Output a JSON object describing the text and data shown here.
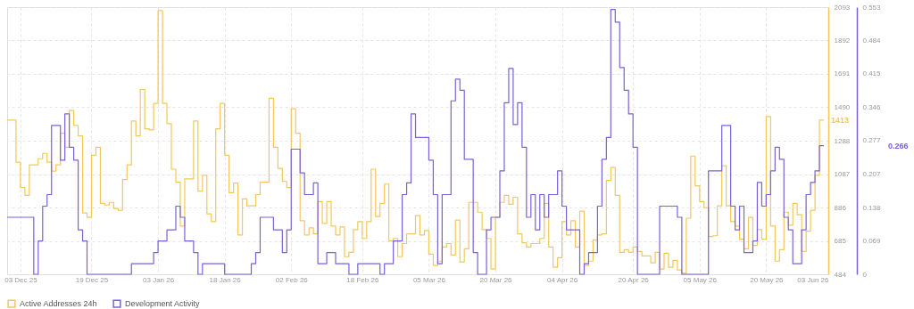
{
  "chart_data": {
    "type": "step",
    "xlim": [
      "2025-11-30",
      "2026-06-03"
    ],
    "xticks": [
      {
        "value": "2025-12-03",
        "label": "03 Dec 25"
      },
      {
        "value": "2025-12-19",
        "label": "19 Dec 25"
      },
      {
        "value": "2026-01-03",
        "label": "03 Jan 26"
      },
      {
        "value": "2026-01-18",
        "label": "18 Jan 26"
      },
      {
        "value": "2026-02-02",
        "label": "02 Feb 26"
      },
      {
        "value": "2026-02-18",
        "label": "18 Feb 26"
      },
      {
        "value": "2026-03-05",
        "label": "05 Mar 26"
      },
      {
        "value": "2026-03-20",
        "label": "20 Mar 26"
      },
      {
        "value": "2026-04-04",
        "label": "04 Apr 26"
      },
      {
        "value": "2026-04-20",
        "label": "20 Apr 26"
      },
      {
        "value": "2026-05-05",
        "label": "05 May 26"
      },
      {
        "value": "2026-05-20",
        "label": "20 May 26"
      },
      {
        "value": "2026-06-03",
        "label": "03 Jun 26"
      }
    ],
    "ylim": [
      484,
      2093
    ],
    "yticks": [
      484,
      685,
      886,
      1087,
      1288,
      1490,
      1691,
      1892,
      2093
    ],
    "y2lim": [
      0,
      0.553
    ],
    "y2ticks": [
      0,
      0.069,
      0.138,
      0.207,
      0.277,
      0.346,
      0.415,
      0.484,
      0.553
    ],
    "grid": true,
    "legend": "bottom",
    "annotations": [
      "1413",
      "0.266"
    ],
    "series": [
      {
        "name": "Active Addresses 24h",
        "color": "#f2c75c",
        "x": [
          "2025-11-30",
          "2025-12-02",
          "2025-12-03",
          "2025-12-04",
          "2025-12-05",
          "2025-12-07",
          "2025-12-08",
          "2025-12-09",
          "2025-12-10",
          "2025-12-11",
          "2025-12-12",
          "2025-12-13",
          "2025-12-14",
          "2025-12-15",
          "2025-12-16",
          "2025-12-17",
          "2025-12-18",
          "2025-12-19",
          "2025-12-20",
          "2025-12-21",
          "2025-12-22",
          "2025-12-23",
          "2025-12-24",
          "2025-12-25",
          "2025-12-26",
          "2025-12-27",
          "2025-12-28",
          "2025-12-29",
          "2025-12-30",
          "2025-12-31",
          "2026-01-01",
          "2026-01-02",
          "2026-01-03",
          "2026-01-04",
          "2026-01-05",
          "2026-01-06",
          "2026-01-07",
          "2026-01-08",
          "2026-01-09",
          "2026-01-11",
          "2026-01-12",
          "2026-01-13",
          "2026-01-14",
          "2026-01-15",
          "2026-01-16",
          "2026-01-17",
          "2026-01-18",
          "2026-01-19",
          "2026-01-20",
          "2026-01-21",
          "2026-01-22",
          "2026-01-23",
          "2026-01-25",
          "2026-01-26",
          "2026-01-28",
          "2026-01-29",
          "2026-01-30",
          "2026-01-31",
          "2026-02-01",
          "2026-02-02",
          "2026-02-03",
          "2026-02-04",
          "2026-02-05",
          "2026-02-06",
          "2026-02-07",
          "2026-02-08",
          "2026-02-09",
          "2026-02-10",
          "2026-02-11",
          "2026-02-12",
          "2026-02-13",
          "2026-02-14",
          "2026-02-15",
          "2026-02-16",
          "2026-02-17",
          "2026-02-18",
          "2026-02-19",
          "2026-02-20",
          "2026-02-21",
          "2026-02-22",
          "2026-02-23",
          "2026-02-24",
          "2026-02-25",
          "2026-02-26",
          "2026-02-27",
          "2026-02-28",
          "2026-03-02",
          "2026-03-03",
          "2026-03-04",
          "2026-03-05",
          "2026-03-06",
          "2026-03-07",
          "2026-03-08",
          "2026-03-09",
          "2026-03-10",
          "2026-03-11",
          "2026-03-12",
          "2026-03-13",
          "2026-03-14",
          "2026-03-16",
          "2026-03-17",
          "2026-03-18",
          "2026-03-19",
          "2026-03-20",
          "2026-03-21",
          "2026-03-22",
          "2026-03-23",
          "2026-03-24",
          "2026-03-25",
          "2026-03-26",
          "2026-03-27",
          "2026-03-28",
          "2026-03-30",
          "2026-03-31",
          "2026-04-01",
          "2026-04-02",
          "2026-04-03",
          "2026-04-04",
          "2026-04-05",
          "2026-04-06",
          "2026-04-07",
          "2026-04-08",
          "2026-04-09",
          "2026-04-10",
          "2026-04-11",
          "2026-04-12",
          "2026-04-13",
          "2026-04-14",
          "2026-04-15",
          "2026-04-16",
          "2026-04-17",
          "2026-04-18",
          "2026-04-19",
          "2026-04-20",
          "2026-04-21",
          "2026-04-22",
          "2026-04-24",
          "2026-04-25",
          "2026-04-26",
          "2026-04-27",
          "2026-04-28",
          "2026-04-29",
          "2026-04-30",
          "2026-05-01",
          "2026-05-02",
          "2026-05-03",
          "2026-05-04",
          "2026-05-05",
          "2026-05-06",
          "2026-05-07",
          "2026-05-08",
          "2026-05-09",
          "2026-05-10",
          "2026-05-11",
          "2026-05-12",
          "2026-05-13",
          "2026-05-14",
          "2026-05-15",
          "2026-05-16",
          "2026-05-17",
          "2026-05-18",
          "2026-05-19",
          "2026-05-20",
          "2026-05-21",
          "2026-05-22",
          "2026-05-23",
          "2026-05-24",
          "2026-05-25",
          "2026-05-26",
          "2026-05-27",
          "2026-05-28",
          "2026-05-29",
          "2026-05-30",
          "2026-05-31",
          "2026-06-01",
          "2026-06-02"
        ],
        "values": [
          1412,
          1159,
          1006,
          959,
          1143,
          1180,
          1212,
          1159,
          1106,
          1143,
          1333,
          1249,
          1470,
          1381,
          1317,
          853,
          827,
          1201,
          1249,
          911,
          901,
          917,
          880,
          869,
          1054,
          1143,
          1407,
          1317,
          1597,
          1360,
          1354,
          1513,
          2072,
          1513,
          1391,
          1117,
          1038,
          774,
          1059,
          1407,
          985,
          1080,
          848,
          801,
          1360,
          1513,
          1201,
          975,
          1033,
          721,
          938,
          896,
          964,
          1038,
          1544,
          1249,
          1122,
          1043,
          1006,
          1481,
          1333,
          806,
          721,
          764,
          727,
          922,
          790,
          922,
          774,
          721,
          769,
          590,
          616,
          753,
          801,
          700,
          801,
          1117,
          832,
          911,
          1027,
          684,
          700,
          590,
          669,
          727,
          837,
          721,
          748,
          605,
          537,
          563,
          648,
          669,
          600,
          811,
          558,
          637,
          917,
          858,
          753,
          700,
          516,
          827,
          917,
          959,
          906,
          948,
          727,
          674,
          648,
          669,
          700,
          911,
          648,
          526,
          584,
          801,
          721,
          806,
          648,
          864,
          537,
          563,
          690,
          721,
          727,
          1049,
          1127,
          959,
          616,
          632,
          616,
          648,
          621,
          595,
          553,
          616,
          516,
          611,
          526,
          568,
          510,
          490,
          822,
          1196,
          1017,
          922,
          885,
          711,
          716,
          896,
          1138,
          896,
          801,
          774,
          695,
          637,
          827,
          658,
          753,
          695,
          1434,
          774,
          563,
          632,
          858,
          780,
          911,
          843,
          621,
          743,
          869,
          1080,
          1413,
          1413
        ]
      },
      {
        "name": "Development Activity",
        "color": "#7b61d9",
        "axis": "y2",
        "x": [
          "2025-11-30",
          "2025-12-06",
          "2025-12-07",
          "2025-12-08",
          "2025-12-09",
          "2025-12-10",
          "2025-12-12",
          "2025-12-13",
          "2025-12-14",
          "2025-12-15",
          "2025-12-16",
          "2025-12-17",
          "2025-12-18",
          "2025-12-28",
          "2026-01-02",
          "2026-01-03",
          "2026-01-05",
          "2026-01-07",
          "2026-01-08",
          "2026-01-09",
          "2026-01-11",
          "2026-01-12",
          "2026-01-13",
          "2026-01-18",
          "2026-01-24",
          "2026-01-25",
          "2026-01-26",
          "2026-01-29",
          "2026-01-31",
          "2026-02-01",
          "2026-02-02",
          "2026-02-04",
          "2026-02-05",
          "2026-02-07",
          "2026-02-08",
          "2026-02-10",
          "2026-02-12",
          "2026-02-15",
          "2026-02-17",
          "2026-02-22",
          "2026-02-23",
          "2026-02-25",
          "2026-02-27",
          "2026-02-28",
          "2026-03-01",
          "2026-03-02",
          "2026-03-05",
          "2026-03-06",
          "2026-03-07",
          "2026-03-08",
          "2026-03-10",
          "2026-03-11",
          "2026-03-12",
          "2026-03-13",
          "2026-03-15",
          "2026-03-16",
          "2026-03-18",
          "2026-03-19",
          "2026-03-21",
          "2026-03-22",
          "2026-03-23",
          "2026-03-24",
          "2026-03-25",
          "2026-03-26",
          "2026-03-27",
          "2026-03-28",
          "2026-03-29",
          "2026-03-30",
          "2026-03-31",
          "2026-04-01",
          "2026-04-03",
          "2026-04-04",
          "2026-04-05",
          "2026-04-08",
          "2026-04-09",
          "2026-04-10",
          "2026-04-12",
          "2026-04-13",
          "2026-04-14",
          "2026-04-15",
          "2026-04-16",
          "2026-04-17",
          "2026-04-18",
          "2026-04-19",
          "2026-04-20",
          "2026-04-21",
          "2026-04-26",
          "2026-04-30",
          "2026-05-01",
          "2026-05-07",
          "2026-05-10",
          "2026-05-12",
          "2026-05-13",
          "2026-05-14",
          "2026-05-15",
          "2026-05-17",
          "2026-05-18",
          "2026-05-19",
          "2026-05-20",
          "2026-05-21",
          "2026-05-22",
          "2026-05-23",
          "2026-05-24",
          "2026-05-25",
          "2026-05-26",
          "2026-05-28",
          "2026-05-29",
          "2026-05-30",
          "2026-05-31",
          "2026-06-01",
          "2026-06-02"
        ],
        "values": [
          0.118,
          0,
          0.069,
          0.141,
          0.165,
          0.308,
          0.236,
          0.332,
          0.263,
          0.236,
          0.092,
          0.069,
          0,
          0.022,
          0.045,
          0.069,
          0.092,
          0.141,
          0.118,
          0.069,
          0.045,
          0,
          0.022,
          0,
          0.022,
          0.045,
          0.118,
          0.092,
          0.045,
          0.092,
          0.259,
          0.21,
          0.165,
          0.189,
          0.022,
          0.045,
          0.022,
          0,
          0.022,
          0,
          0.022,
          0.069,
          0.165,
          0.189,
          0.332,
          0.283,
          0.236,
          0.165,
          0.022,
          0.165,
          0.359,
          0.404,
          0.381,
          0.238,
          0.045,
          0,
          0.092,
          0.118,
          0.214,
          0.355,
          0.426,
          0.31,
          0.355,
          0.263,
          0.118,
          0.165,
          0.092,
          0.165,
          0.118,
          0.165,
          0.214,
          0.141,
          0.092,
          0,
          0.022,
          0.045,
          0.141,
          0.238,
          0.283,
          0.548,
          0.522,
          0.428,
          0.381,
          0.332,
          0.263,
          0,
          0.141,
          0.118,
          0,
          0.214,
          0.308,
          0.141,
          0.092,
          0.141,
          0.045,
          0.069,
          0.19,
          0.141,
          0.165,
          0.214,
          0.263,
          0.238,
          0.118,
          0.092,
          0.022,
          0.092,
          0.165,
          0.19,
          0.214,
          0.266,
          0.266
        ]
      }
    ]
  }
}
